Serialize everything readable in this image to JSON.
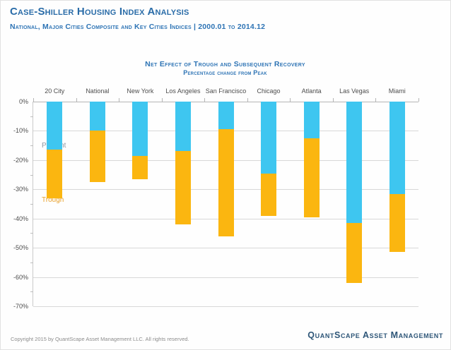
{
  "header": {
    "title": "Case-Shiller Housing Index Analysis",
    "subtitle": "National, Major Cities Composite and Key Cities Indices | 2000.01 to 2014.12"
  },
  "chart": {
    "title": "Net Effect of Trough and Subsequent Recovery",
    "subtitle": "Percentage change from Peak"
  },
  "chart_data": {
    "type": "bar",
    "stacked": true,
    "title": "Net Effect of Trough and Subsequent Recovery",
    "subtitle": "Percentage change from Peak",
    "categories": [
      "20 City",
      "National",
      "New York",
      "Los Angeles",
      "San Francisco",
      "Chicago",
      "Atlanta",
      "Las Vegas",
      "Miami"
    ],
    "series": [
      {
        "name": "Present",
        "values": [
          -16.5,
          -10,
          -18.5,
          -17,
          -9.5,
          -24.5,
          -12.5,
          -41.5,
          -31.5
        ],
        "color": "#3ec6f0"
      },
      {
        "name": "Trough",
        "values": [
          -33,
          -27.5,
          -26.5,
          -42,
          -46,
          -39,
          -39.5,
          -62,
          -51.5
        ],
        "color": "#fbb610"
      }
    ],
    "y_ticks": [
      "0%",
      "-10%",
      "-20%",
      "-30%",
      "-40%",
      "-50%",
      "-60%",
      "-70%"
    ],
    "ylim": [
      0,
      -70
    ],
    "grid": true,
    "legend_position": "none",
    "annotations": {
      "present": {
        "label": "Present",
        "color": "#8c96a3"
      },
      "trough": {
        "label": "Trough",
        "color": "#e8a02b"
      }
    }
  },
  "footer": {
    "copyright": "Copyright 2015 by QuantScape Asset Management LLC.  All rights reserved.",
    "brand": "QuantScape Asset Management"
  }
}
